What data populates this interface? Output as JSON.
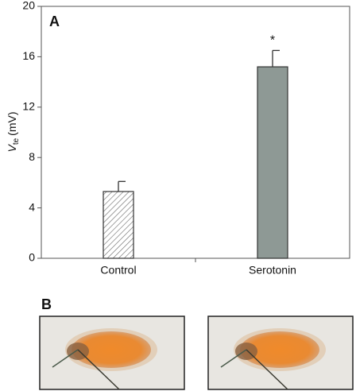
{
  "chart_data": {
    "type": "bar",
    "panel_label": "A",
    "y_label": {
      "symbol": "V",
      "subscript": "te",
      "unit": "(mV)"
    },
    "categories": [
      "Control",
      "Serotonin"
    ],
    "values": [
      5.3,
      15.2
    ],
    "errors": [
      0.8,
      1.3
    ],
    "colors": [
      "#ffffff",
      "#8e9995"
    ],
    "hatched": [
      true,
      false
    ],
    "annotations": [
      {
        "text": "*",
        "x": "Serotonin"
      }
    ],
    "ylim": [
      0,
      20
    ],
    "yticks": [
      0,
      4,
      8,
      12,
      16,
      20
    ],
    "grid": false
  },
  "figure_b": {
    "panel_label": "B"
  }
}
